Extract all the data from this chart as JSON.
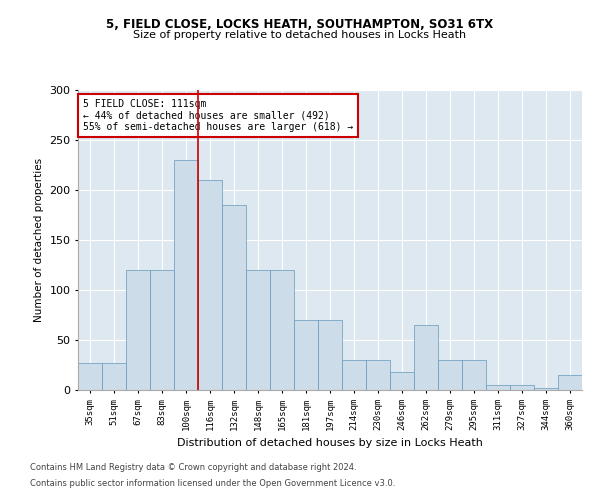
{
  "title1": "5, FIELD CLOSE, LOCKS HEATH, SOUTHAMPTON, SO31 6TX",
  "title2": "Size of property relative to detached houses in Locks Heath",
  "xlabel": "Distribution of detached houses by size in Locks Heath",
  "ylabel": "Number of detached properties",
  "categories": [
    "35sqm",
    "51sqm",
    "67sqm",
    "83sqm",
    "100sqm",
    "116sqm",
    "132sqm",
    "148sqm",
    "165sqm",
    "181sqm",
    "197sqm",
    "214sqm",
    "230sqm",
    "246sqm",
    "262sqm",
    "279sqm",
    "295sqm",
    "311sqm",
    "327sqm",
    "344sqm",
    "360sqm"
  ],
  "values": [
    27,
    27,
    120,
    120,
    230,
    210,
    185,
    120,
    120,
    70,
    70,
    30,
    30,
    18,
    65,
    30,
    30,
    5,
    5,
    2,
    15
  ],
  "bar_color": "#ccdce8",
  "bar_edge_color": "#6699bb",
  "vline_x": 4.5,
  "vline_color": "#cc0000",
  "annotation_text": "5 FIELD CLOSE: 111sqm\n← 44% of detached houses are smaller (492)\n55% of semi-detached houses are larger (618) →",
  "annotation_box_color": "#ffffff",
  "annotation_box_edge": "#cc0000",
  "ylim": [
    0,
    300
  ],
  "yticks": [
    0,
    50,
    100,
    150,
    200,
    250,
    300
  ],
  "bg_color": "#dde8f0",
  "footer1": "Contains HM Land Registry data © Crown copyright and database right 2024.",
  "footer2": "Contains public sector information licensed under the Open Government Licence v3.0."
}
